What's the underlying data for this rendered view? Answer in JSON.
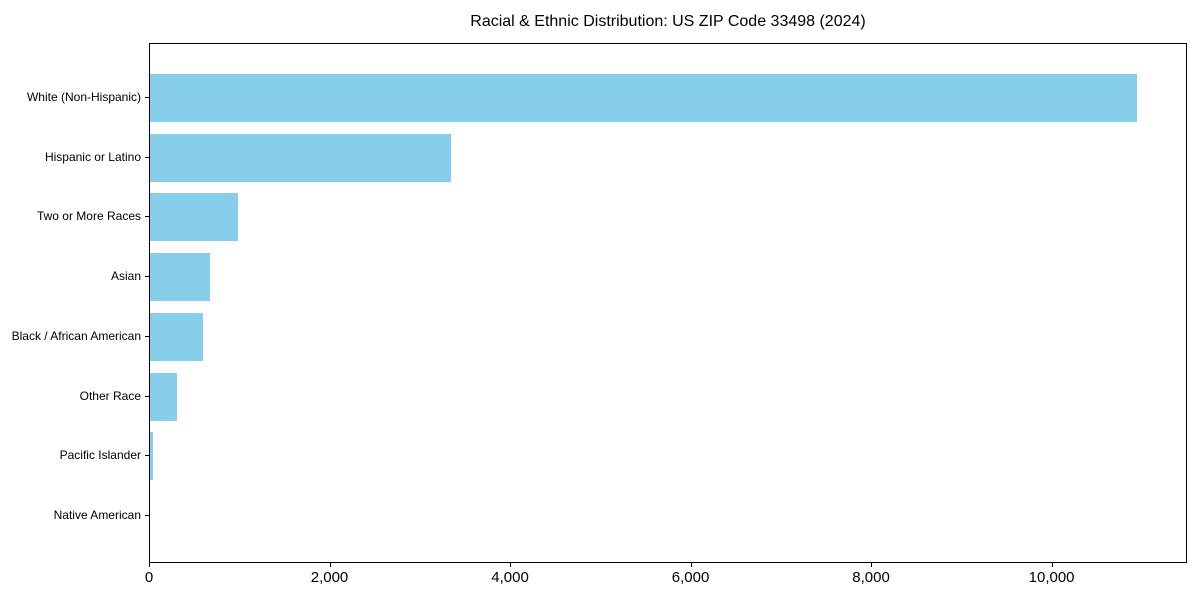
{
  "chart_data": {
    "type": "bar",
    "orientation": "horizontal",
    "title": "Racial & Ethnic Distribution: US ZIP Code 33498 (2024)",
    "categories": [
      "White (Non-Hispanic)",
      "Hispanic or Latino",
      "Two or More Races",
      "Asian",
      "Black / African American",
      "Other Race",
      "Pacific Islander",
      "Native American"
    ],
    "values": [
      10930,
      3330,
      980,
      660,
      585,
      300,
      30,
      0
    ],
    "xlabel": "",
    "ylabel": "",
    "xlim": [
      0,
      11500
    ],
    "xticks": [
      0,
      2000,
      4000,
      6000,
      8000,
      10000
    ],
    "xtick_labels": [
      "0",
      "2,000",
      "4,000",
      "6,000",
      "8,000",
      "10,000"
    ],
    "bar_color": "#87CEEB",
    "text_color": "#000000",
    "axis_color": "#000000",
    "background": "#ffffff",
    "grid": false,
    "legend": "none"
  }
}
